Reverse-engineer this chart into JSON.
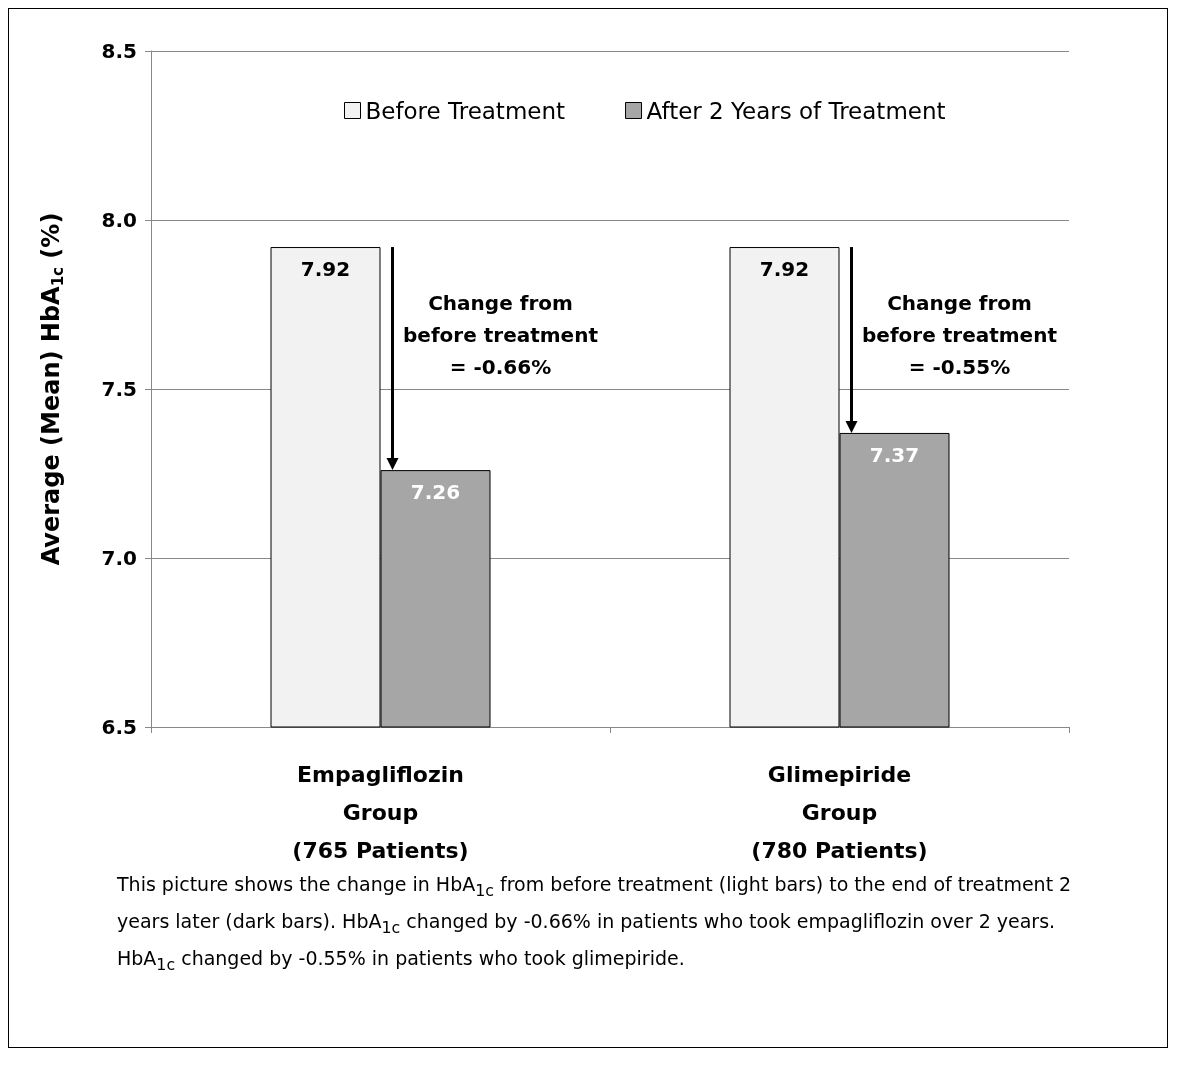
{
  "chart_data": {
    "type": "bar",
    "ylabel": "Average (Mean) HbA$_{1c}$ (%)",
    "categories": [
      "Empagliflozin\nGroup\n(765 Patients)",
      "Glimepiride\nGroup\n(780 Patients)"
    ],
    "series": [
      {
        "name": "Before Treatment",
        "color": "#f2f2f2",
        "values": [
          7.92,
          7.92
        ]
      },
      {
        "name": "After 2 Years of Treatment",
        "color": "#a6a6a6",
        "values": [
          7.26,
          7.37
        ]
      }
    ],
    "ylim": [
      6.5,
      8.5
    ],
    "yticks": [
      6.5,
      {
        "value": 7,
        "label": "7.0"
      },
      7.5,
      {
        "value": 8,
        "label": "8.0"
      },
      8.5
    ],
    "grid": "y",
    "legend": "top",
    "data_labels": true,
    "annotations": [
      {
        "text": "Change from\nbefore treatment\n= -0.66%",
        "x": "Empagliflozin\nGroup\n(765 Patients)",
        "y": 7.66
      },
      {
        "text": "Change from\nbefore treatment\n= -0.55%",
        "x": "Glimepiride\nGroup\n(780 Patients)",
        "y": 7.66
      },
      "This picture shows the change in HbA$_{1c}$ from before treatment (light bars) to the end of treatment 2 years later (dark bars). HbA$_{1c}$ changed by -0.66% in patients who took empagliflozin over 2 years. HbA$_{1c}$ changed by -0.55% in patients who took glimepiride."
    ]
  }
}
